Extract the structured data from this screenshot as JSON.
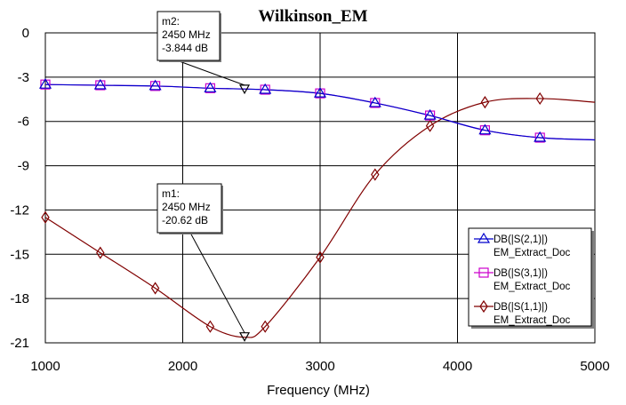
{
  "chart_data": {
    "type": "line",
    "title": "Wilkinson_EM",
    "xlabel": "Frequency (MHz)",
    "ylabel": "",
    "xlim": [
      1000,
      5000
    ],
    "ylim": [
      -21,
      0
    ],
    "x_ticks": [
      "1000",
      "2000",
      "3000",
      "4000",
      "5000"
    ],
    "y_ticks": [
      "0",
      "-3",
      "-6",
      "-9",
      "-12",
      "-15",
      "-18",
      "-21"
    ],
    "grid": true,
    "legend_position": "bottom-right",
    "series": [
      {
        "name": "DB(|S(2,1)|)",
        "subname": "EM_Extract_Doc",
        "color": "#0000cc",
        "marker": "triangle",
        "x": [
          1000,
          1400,
          1800,
          2200,
          2600,
          3000,
          3400,
          3800,
          4200,
          4600,
          5000
        ],
        "y": [
          -3.5,
          -3.55,
          -3.6,
          -3.75,
          -3.85,
          -4.1,
          -4.75,
          -5.6,
          -6.6,
          -7.1,
          -7.25
        ]
      },
      {
        "name": "DB(|S(3,1)|)",
        "subname": "EM_Extract_Doc",
        "color": "#cc00cc",
        "marker": "square",
        "x": [
          1000,
          1400,
          1800,
          2200,
          2600,
          3000,
          3400,
          3800,
          4200,
          4600,
          5000
        ],
        "y": [
          -3.5,
          -3.55,
          -3.6,
          -3.75,
          -3.85,
          -4.1,
          -4.75,
          -5.6,
          -6.6,
          -7.1,
          -7.25
        ]
      },
      {
        "name": "DB(|S(1,1)|)",
        "subname": "EM_Extract_Doc",
        "color": "#800000",
        "marker": "diamond",
        "x": [
          1000,
          1400,
          1800,
          2200,
          2450,
          2600,
          3000,
          3400,
          3800,
          4200,
          4600,
          5000
        ],
        "y": [
          -12.5,
          -14.9,
          -17.3,
          -19.9,
          -20.62,
          -19.9,
          -15.2,
          -9.6,
          -6.3,
          -4.7,
          -4.45,
          -4.7
        ]
      }
    ],
    "markers": [
      {
        "name": "m2",
        "freq": "2450 MHz",
        "value": "-3.844 dB",
        "x": 2450,
        "y": -3.844
      },
      {
        "name": "m1",
        "freq": "2450 MHz",
        "value": "-20.62 dB",
        "x": 2450,
        "y": -20.62
      }
    ]
  }
}
